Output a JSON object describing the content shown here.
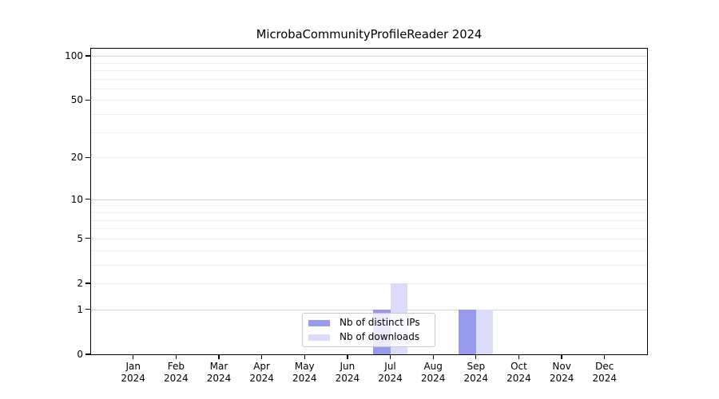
{
  "title": "MicrobaCommunityProfileReader 2024",
  "chart_data": {
    "type": "bar",
    "title": "MicrobaCommunityProfileReader 2024",
    "xlabel": "",
    "ylabel": "",
    "categories": [
      "Jan",
      "Feb",
      "Mar",
      "Apr",
      "May",
      "Jun",
      "Jul",
      "Aug",
      "Sep",
      "Oct",
      "Nov",
      "Dec"
    ],
    "x_year_label": "2024",
    "series": [
      {
        "name": "Nb of distinct IPs",
        "color": "#9a9aec",
        "values": [
          0,
          0,
          0,
          0,
          0,
          0,
          1,
          0,
          1,
          0,
          0,
          0
        ]
      },
      {
        "name": "Nb of downloads",
        "color": "#dcdcfa",
        "values": [
          0,
          0,
          0,
          0,
          0,
          0,
          2,
          0,
          1,
          0,
          0,
          0
        ]
      }
    ],
    "y_axis": {
      "scale": "log1p",
      "tick_values": [
        0,
        1,
        2,
        5,
        10,
        20,
        50,
        100
      ],
      "major_grid_values": [
        1,
        10,
        100
      ],
      "minor_grid_values": [
        2,
        3,
        4,
        5,
        6,
        7,
        8,
        9,
        20,
        30,
        40,
        50,
        60,
        70,
        80,
        90
      ],
      "ymax": 112
    },
    "legend": {
      "position": "lower center",
      "items": [
        "Nb of distinct IPs",
        "Nb of downloads"
      ]
    },
    "grid": true
  },
  "colors": {
    "background": "#ffffff",
    "axis": "#000000",
    "major_grid": "#d4d4d4",
    "minor_grid": "#f0f0f0",
    "legend_border": "#c9c9c9",
    "bar_distinct_ips": "#9a9aec",
    "bar_downloads": "#dcdcfa"
  }
}
